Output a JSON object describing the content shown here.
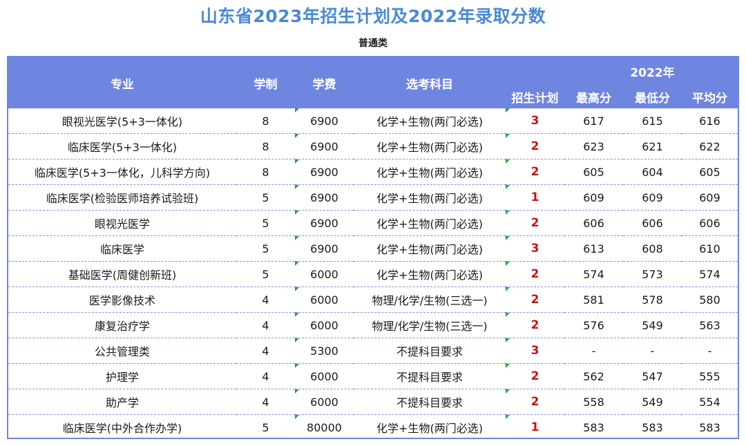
{
  "title": "山东省2023年招生计划及2022年录取分数",
  "subtitle": "普通类",
  "table": {
    "headers": {
      "major": "专业",
      "years": "学制",
      "fee": "学费",
      "subjects": "选考科目",
      "year_group": "2022年",
      "plan": "招生计划",
      "max": "最高分",
      "min": "最低分",
      "avg": "平均分"
    },
    "rows": [
      {
        "major": "眼视光医学(5+3一体化)",
        "years": "8",
        "fee": "6900",
        "subjects": "化学+生物(两门必选)",
        "plan": "3",
        "max": "617",
        "min": "615",
        "avg": "616"
      },
      {
        "major": "临床医学(5+3一体化)",
        "years": "8",
        "fee": "6900",
        "subjects": "化学+生物(两门必选)",
        "plan": "2",
        "max": "623",
        "min": "621",
        "avg": "622"
      },
      {
        "major": "临床医学(5+3一体化，儿科学方向)",
        "years": "8",
        "fee": "6900",
        "subjects": "化学+生物(两门必选)",
        "plan": "2",
        "max": "605",
        "min": "604",
        "avg": "605"
      },
      {
        "major": "临床医学(检验医师培养试验班)",
        "years": "5",
        "fee": "6900",
        "subjects": "化学+生物(两门必选)",
        "plan": "1",
        "max": "609",
        "min": "609",
        "avg": "609"
      },
      {
        "major": "眼视光医学",
        "years": "5",
        "fee": "6900",
        "subjects": "化学+生物(两门必选)",
        "plan": "2",
        "max": "606",
        "min": "606",
        "avg": "606"
      },
      {
        "major": "临床医学",
        "years": "5",
        "fee": "6900",
        "subjects": "化学+生物(两门必选)",
        "plan": "3",
        "max": "613",
        "min": "608",
        "avg": "610"
      },
      {
        "major": "基础医学(周健创新班)",
        "years": "5",
        "fee": "6000",
        "subjects": "化学+生物(两门必选)",
        "plan": "2",
        "max": "574",
        "min": "573",
        "avg": "574"
      },
      {
        "major": "医学影像技术",
        "years": "4",
        "fee": "6000",
        "subjects": "物理/化学/生物(三选一)",
        "plan": "2",
        "max": "581",
        "min": "578",
        "avg": "580"
      },
      {
        "major": "康复治疗学",
        "years": "4",
        "fee": "6000",
        "subjects": "物理/化学/生物(三选一)",
        "plan": "2",
        "max": "576",
        "min": "549",
        "avg": "563"
      },
      {
        "major": "公共管理类",
        "years": "4",
        "fee": "5300",
        "subjects": "不提科目要求",
        "plan": "3",
        "max": "-",
        "min": "-",
        "avg": "-"
      },
      {
        "major": "护理学",
        "years": "4",
        "fee": "6000",
        "subjects": "不提科目要求",
        "plan": "2",
        "max": "562",
        "min": "547",
        "avg": "555"
      },
      {
        "major": "助产学",
        "years": "4",
        "fee": "6000",
        "subjects": "不提科目要求",
        "plan": "2",
        "max": "558",
        "min": "549",
        "avg": "554"
      },
      {
        "major": "临床医学(中外合作办学)",
        "years": "5",
        "fee": "80000",
        "subjects": "化学+生物(两门必选)",
        "plan": "1",
        "max": "583",
        "min": "583",
        "avg": "583"
      }
    ]
  }
}
